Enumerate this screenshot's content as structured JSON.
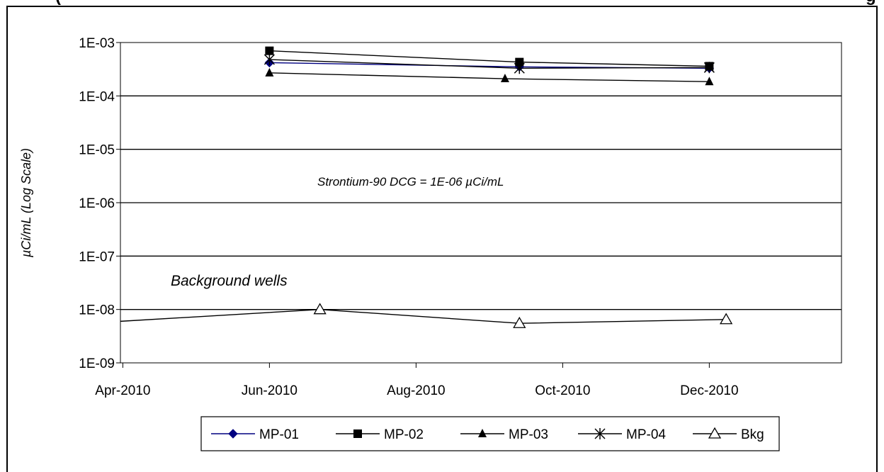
{
  "header": {
    "title_fragment": "(",
    "title_tail": "g"
  },
  "chart_data": {
    "type": "line",
    "title": "",
    "xlabel": "",
    "ylabel": "µCi/mL (Log Scale)",
    "yscale": "log",
    "ylim": [
      1e-09,
      0.001
    ],
    "y_ticks": [
      "1E-09",
      "1E-08",
      "1E-07",
      "1E-06",
      "1E-05",
      "1E-04",
      "1E-03"
    ],
    "xlim": [
      "2010-03-31",
      "2011-01-25"
    ],
    "x_ticks": [
      {
        "date": "2010-04-01",
        "label": "Apr-2010"
      },
      {
        "date": "2010-06-01",
        "label": "Jun-2010"
      },
      {
        "date": "2010-08-01",
        "label": "Aug-2010"
      },
      {
        "date": "2010-10-01",
        "label": "Oct-2010"
      },
      {
        "date": "2010-12-01",
        "label": "Dec-2010"
      }
    ],
    "grid": "horizontal",
    "legend_position": "bottom",
    "annotations": [
      {
        "text": "Strontium-90 DCG = 1E-06 µCi/mL",
        "style": "small"
      },
      {
        "text": "Background wells",
        "style": "large"
      }
    ],
    "series": [
      {
        "name": "MP-01",
        "marker": "diamond",
        "color": "#000080",
        "x": [
          "2010-06-01",
          "2010-09-13",
          "2010-12-01"
        ],
        "y": [
          0.00042,
          0.00035,
          0.00033
        ]
      },
      {
        "name": "MP-02",
        "marker": "square",
        "color": "#000000",
        "x": [
          "2010-06-01",
          "2010-09-13",
          "2010-12-01"
        ],
        "y": [
          0.0007,
          0.00043,
          0.00036
        ]
      },
      {
        "name": "MP-03",
        "marker": "triangle",
        "color": "#000000",
        "x": [
          "2010-06-01",
          "2010-09-07",
          "2010-12-01"
        ],
        "y": [
          0.00027,
          0.00021,
          0.000185
        ]
      },
      {
        "name": "MP-04",
        "marker": "star",
        "color": "#000000",
        "x": [
          "2010-06-01",
          "2010-09-13",
          "2010-12-01"
        ],
        "y": [
          0.00048,
          0.00033,
          0.00034
        ]
      },
      {
        "name": "Bkg",
        "marker": "open-triangle",
        "color": "#000000",
        "x": [
          "2010-03-31",
          "2010-06-22",
          "2010-09-13",
          "2010-12-08"
        ],
        "y": [
          6e-09,
          1e-08,
          5.5e-09,
          6.5e-09
        ]
      }
    ]
  }
}
